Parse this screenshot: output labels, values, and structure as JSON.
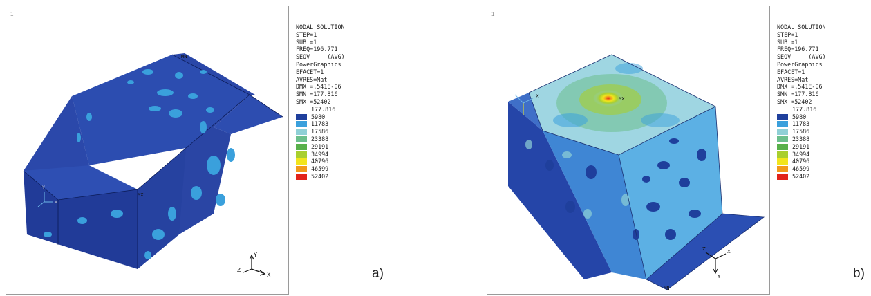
{
  "panels": [
    {
      "caption": "a)",
      "labels": {
        "mn": "MN",
        "mx": "MX",
        "corner": "1"
      },
      "triad": {
        "x": "X",
        "y": "Y",
        "z": "Z"
      },
      "legend": {
        "title": "NODAL SOLUTION",
        "lines": [
          "STEP=1",
          "SUB =1",
          "FREQ=196.771",
          "SEQV     (AVG)",
          "PowerGraphics",
          "EFACET=1",
          "AVRES=Mat",
          "DMX =.541E-06",
          "SMN =177.816",
          "SMX =52402"
        ],
        "min_value": "177.816",
        "scale": [
          {
            "value": "5980",
            "color": "#1f3f9c"
          },
          {
            "value": "11783",
            "color": "#3aa0dc"
          },
          {
            "value": "17586",
            "color": "#8fd0d6"
          },
          {
            "value": "23388",
            "color": "#6cbf8c"
          },
          {
            "value": "29191",
            "color": "#58b04a"
          },
          {
            "value": "34994",
            "color": "#a9cf2f"
          },
          {
            "value": "40796",
            "color": "#f2e51d"
          },
          {
            "value": "46599",
            "color": "#f29a1b"
          },
          {
            "value": "52402",
            "color": "#e2231a"
          }
        ]
      }
    },
    {
      "caption": "b)",
      "labels": {
        "mn": "MN",
        "mx": "MX",
        "corner": "1",
        "origin": "X"
      },
      "triad": {
        "x": "X",
        "y": "Y",
        "z": "Z"
      },
      "legend": {
        "title": "NODAL SOLUTION",
        "lines": [
          "STEP=1",
          "SUB =1",
          "FREQ=196.771",
          "SEQV     (AVG)",
          "PowerGraphics",
          "EFACET=1",
          "AVRES=Mat",
          "DMX =.541E-06",
          "SMN =177.816",
          "SMX =52402"
        ],
        "min_value": "177.816",
        "scale": [
          {
            "value": "5980",
            "color": "#1f3f9c"
          },
          {
            "value": "11783",
            "color": "#3aa0dc"
          },
          {
            "value": "17586",
            "color": "#8fd0d6"
          },
          {
            "value": "23388",
            "color": "#6cbf8c"
          },
          {
            "value": "29191",
            "color": "#58b04a"
          },
          {
            "value": "34994",
            "color": "#a9cf2f"
          },
          {
            "value": "40796",
            "color": "#f2e51d"
          },
          {
            "value": "46599",
            "color": "#f29a1b"
          },
          {
            "value": "52402",
            "color": "#e2231a"
          }
        ]
      }
    }
  ]
}
